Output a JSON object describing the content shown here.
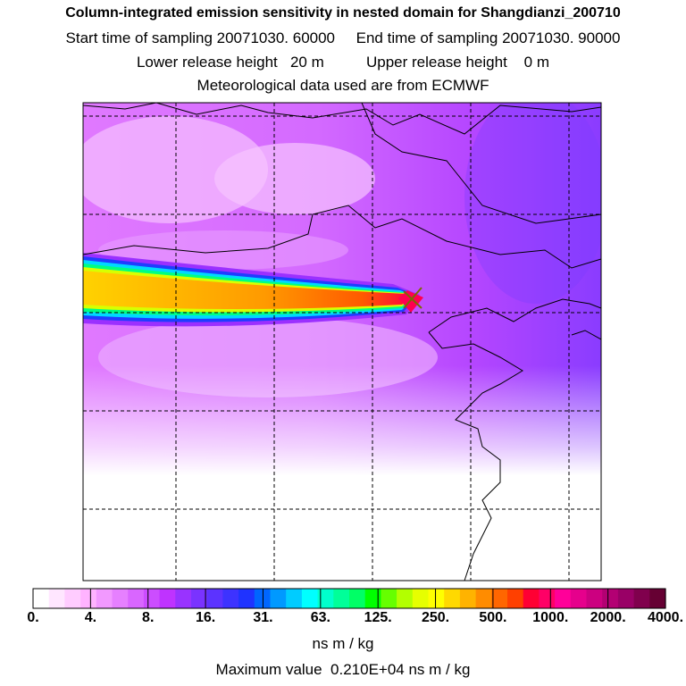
{
  "title": {
    "line1": "Column-integrated emission sensitivity in nested domain for Shangdianzi_200710",
    "line2": "Start time of sampling 20071030. 60000     End time of sampling 20071030. 90000",
    "line3": "Lower release height   20 m          Upper release height    0 m",
    "line4": "Meteorological data used are from ECMWF"
  },
  "chart_data": {
    "type": "heatmap",
    "description_field": "column-integrated emission sensitivity map",
    "colorbar": {
      "tick_labels": [
        "0.",
        "4.",
        "8.",
        "16.",
        "31.",
        "63.",
        "125.",
        "250.",
        "500.",
        "1000.",
        "2000.",
        "4000."
      ],
      "colors": [
        "#ffffff",
        "#ffe6ff",
        "#ffccff",
        "#ffb3ff",
        "#f299ff",
        "#e680ff",
        "#d966ff",
        "#cc4dff",
        "#bf33ff",
        "#9933ff",
        "#7a33ff",
        "#5c33ff",
        "#3d33ff",
        "#1f33ff",
        "#0066ff",
        "#0099ff",
        "#00ccff",
        "#00ffff",
        "#00ffcc",
        "#00ff99",
        "#00ff66",
        "#00ff00",
        "#66ff00",
        "#b3ff00",
        "#e6ff00",
        "#ffff00",
        "#ffd900",
        "#ffb300",
        "#ff8c00",
        "#ff6600",
        "#ff4000",
        "#ff0033",
        "#ff0066",
        "#ff0099",
        "#e6008c",
        "#cc0080",
        "#b30073",
        "#990066",
        "#80004d",
        "#660033"
      ],
      "unit": "ns m / kg"
    },
    "plume": {
      "receptor": "Shangdianzi",
      "max_value": 2100,
      "max_value_label": "0.210E+04"
    },
    "grid": true
  },
  "footer": {
    "unit": "ns m / kg",
    "max_label": "Maximum value  0.210E+04 ns m / kg"
  }
}
